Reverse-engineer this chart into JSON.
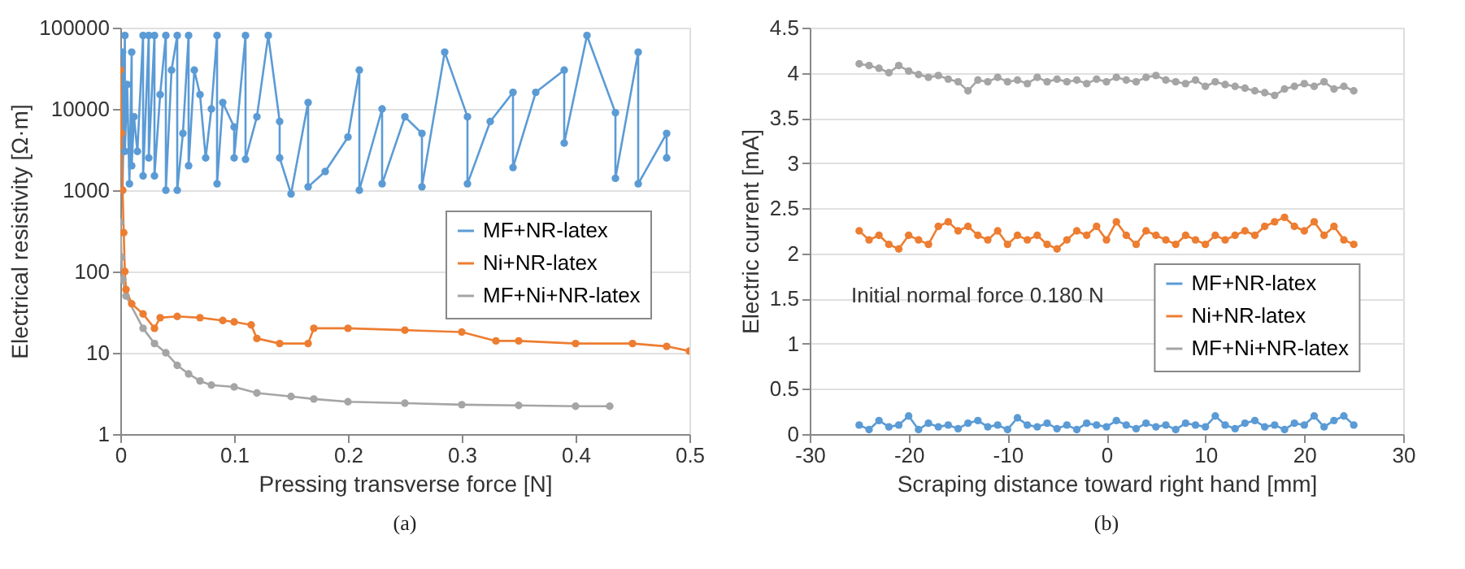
{
  "chart_data": [
    {
      "type": "line",
      "xlabel": "Pressing transverse force    [N]",
      "ylabel": "Electrical resistivity [Ω·m]",
      "log": "y",
      "xlim": [
        0,
        0.5
      ],
      "xticks": [
        0,
        0.1,
        0.2,
        0.3,
        0.4,
        0.5
      ],
      "ylim": [
        1,
        100000
      ],
      "yticks": [
        1,
        10,
        100,
        1000,
        10000,
        100000
      ],
      "grid": "y",
      "legend": "right",
      "marker": "circle",
      "line_style": "solid",
      "annotations": [
        "(a)"
      ],
      "series": [
        {
          "name": "MF+NR-latex",
          "color": "#5b9bd5",
          "x": [
            0.002,
            0.002,
            0.004,
            0.004,
            0.006,
            0.008,
            0.01,
            0.01,
            0.012,
            0.015,
            0.02,
            0.02,
            0.025,
            0.025,
            0.03,
            0.03,
            0.035,
            0.04,
            0.04,
            0.045,
            0.05,
            0.05,
            0.055,
            0.06,
            0.06,
            0.065,
            0.07,
            0.075,
            0.08,
            0.085,
            0.085,
            0.09,
            0.1,
            0.1,
            0.11,
            0.11,
            0.12,
            0.13,
            0.14,
            0.14,
            0.15,
            0.165,
            0.165,
            0.18,
            0.2,
            0.21,
            0.21,
            0.23,
            0.23,
            0.25,
            0.265,
            0.265,
            0.285,
            0.305,
            0.305,
            0.325,
            0.345,
            0.345,
            0.365,
            0.39,
            0.39,
            0.41,
            0.435,
            0.435,
            0.455,
            0.455,
            0.48,
            0.48
          ],
          "values": [
            50000,
            1000,
            80000,
            3000,
            20000,
            1200,
            50000,
            2000,
            8000,
            3000,
            80000,
            1500,
            80000,
            2500,
            80000,
            1500,
            15000,
            80000,
            1000,
            30000,
            80000,
            1000,
            5000,
            80000,
            2000,
            30000,
            15000,
            2500,
            10000,
            80000,
            1200,
            12000,
            6000,
            2500,
            80000,
            2400,
            8000,
            80000,
            7000,
            2500,
            900,
            12000,
            1100,
            1700,
            4500,
            30000,
            1000,
            10000,
            1200,
            8000,
            5000,
            1100,
            50000,
            8000,
            1200,
            7000,
            16000,
            1900,
            16000,
            30000,
            3800,
            80000,
            9000,
            1400,
            50000,
            1200,
            5000,
            2500
          ]
        },
        {
          "name": "Ni+NR-latex",
          "color": "#ed7d31",
          "x": [
            0,
            0.001,
            0.002,
            0.003,
            0.004,
            0.005,
            0.01,
            0.02,
            0.03,
            0.035,
            0.05,
            0.07,
            0.09,
            0.1,
            0.115,
            0.12,
            0.14,
            0.165,
            0.17,
            0.2,
            0.25,
            0.3,
            0.33,
            0.35,
            0.4,
            0.45,
            0.48,
            0.5
          ],
          "values": [
            30000,
            5000,
            1000,
            300,
            100,
            60,
            40,
            30,
            20,
            27,
            28,
            27,
            25,
            24,
            22,
            15,
            13,
            13,
            20,
            20,
            19,
            18,
            14,
            14,
            13,
            13,
            12,
            10.5
          ]
        },
        {
          "name": "MF+Ni+NR-latex",
          "color": "#a5a5a5",
          "x": [
            0,
            0.001,
            0.002,
            0.003,
            0.005,
            0.01,
            0.02,
            0.03,
            0.04,
            0.05,
            0.06,
            0.07,
            0.08,
            0.1,
            0.12,
            0.15,
            0.17,
            0.2,
            0.25,
            0.3,
            0.35,
            0.4,
            0.43
          ],
          "values": [
            400,
            150,
            80,
            null,
            50,
            null,
            20,
            13,
            10,
            7,
            5.5,
            4.5,
            4,
            3.8,
            3.2,
            2.9,
            2.7,
            2.5,
            2.4,
            2.3,
            2.25,
            2.2,
            2.2
          ]
        }
      ]
    },
    {
      "type": "line",
      "xlabel": "Scraping distance toward right hand    [mm]",
      "ylabel": "Electric current [mA]",
      "xlim": [
        -30,
        30
      ],
      "xticks": [
        -30,
        -20,
        -10,
        0,
        10,
        20,
        30
      ],
      "ylim": [
        0,
        4.5
      ],
      "yticks": [
        0,
        0.5,
        1,
        1.5,
        2,
        2.5,
        3,
        3.5,
        4,
        4.5
      ],
      "grid": "y",
      "legend": "bottom right",
      "marker": "circle",
      "line_style": "solid",
      "annotations": [
        "Initial normal force 0.180 N",
        "(b)"
      ],
      "x": [
        -25,
        -24,
        -23,
        -22,
        -21,
        -20,
        -19,
        -18,
        -17,
        -16,
        -15,
        -14,
        -13,
        -12,
        -11,
        -10,
        -9,
        -8,
        -7,
        -6,
        -5,
        -4,
        -3,
        -2,
        -1,
        0,
        1,
        2,
        3,
        4,
        5,
        6,
        7,
        8,
        9,
        10,
        11,
        12,
        13,
        14,
        15,
        16,
        17,
        18,
        19,
        20,
        21,
        22,
        23,
        24,
        25
      ],
      "series": [
        {
          "name": "MF+NR-latex",
          "color": "#5b9bd5",
          "values": [
            0.1,
            0.05,
            0.15,
            0.08,
            0.1,
            0.2,
            0.05,
            0.12,
            0.08,
            0.1,
            0.06,
            0.12,
            0.15,
            0.08,
            0.1,
            0.05,
            0.18,
            0.1,
            0.08,
            0.12,
            0.06,
            0.1,
            0.05,
            0.12,
            0.1,
            0.08,
            0.15,
            0.1,
            0.06,
            0.12,
            0.08,
            0.1,
            0.05,
            0.12,
            0.1,
            0.08,
            0.2,
            0.1,
            0.06,
            0.12,
            0.15,
            0.08,
            0.1,
            0.05,
            0.12,
            0.1,
            0.2,
            0.08,
            0.15,
            0.2,
            0.1
          ]
        },
        {
          "name": "Ni+NR-latex",
          "color": "#ed7d31",
          "values": [
            2.25,
            2.15,
            2.2,
            2.1,
            2.05,
            2.2,
            2.15,
            2.1,
            2.3,
            2.35,
            2.25,
            2.3,
            2.2,
            2.15,
            2.25,
            2.1,
            2.2,
            2.15,
            2.2,
            2.1,
            2.05,
            2.15,
            2.25,
            2.2,
            2.3,
            2.15,
            2.35,
            2.2,
            2.1,
            2.25,
            2.2,
            2.15,
            2.1,
            2.2,
            2.15,
            2.1,
            2.2,
            2.15,
            2.2,
            2.25,
            2.2,
            2.3,
            2.35,
            2.4,
            2.3,
            2.25,
            2.35,
            2.2,
            2.3,
            2.15,
            2.1
          ]
        },
        {
          "name": "MF+Ni+NR-latex",
          "color": "#a5a5a5",
          "values": [
            4.1,
            4.08,
            4.05,
            4.0,
            4.08,
            4.02,
            3.98,
            3.95,
            3.97,
            3.93,
            3.9,
            3.8,
            3.92,
            3.9,
            3.95,
            3.9,
            3.92,
            3.88,
            3.95,
            3.9,
            3.93,
            3.9,
            3.92,
            3.88,
            3.93,
            3.9,
            3.95,
            3.92,
            3.9,
            3.95,
            3.97,
            3.92,
            3.9,
            3.88,
            3.92,
            3.85,
            3.9,
            3.87,
            3.85,
            3.83,
            3.8,
            3.78,
            3.75,
            3.82,
            3.85,
            3.88,
            3.85,
            3.9,
            3.82,
            3.85,
            3.8
          ]
        }
      ]
    }
  ]
}
